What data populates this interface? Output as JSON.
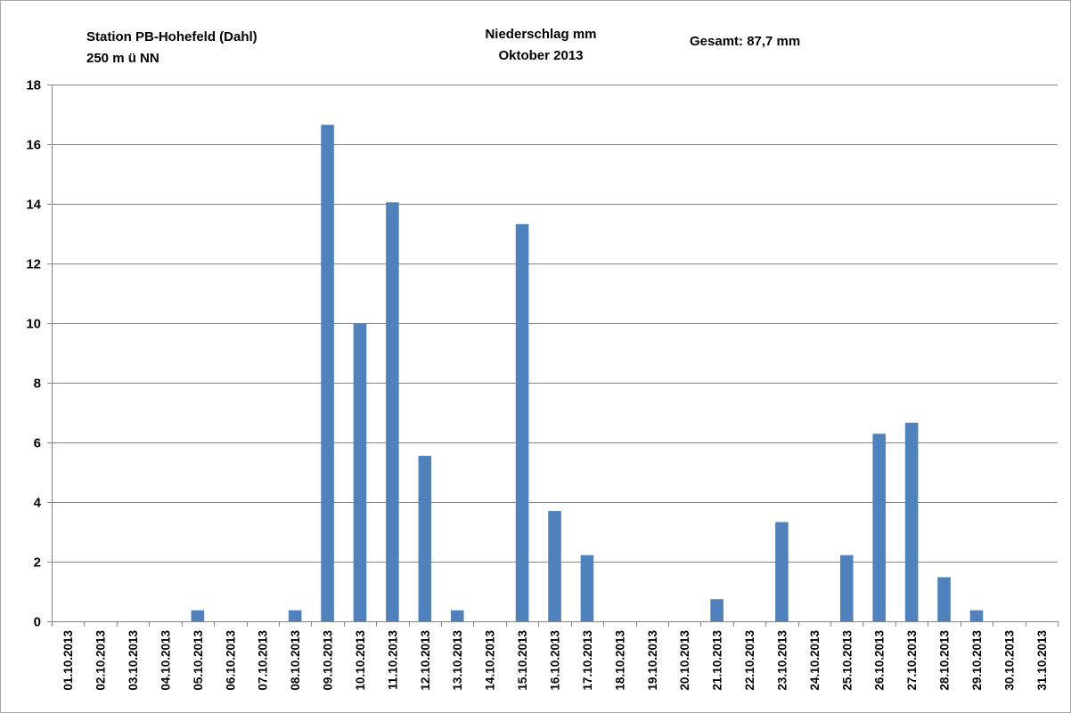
{
  "chart_data": {
    "type": "bar",
    "header": {
      "station_line1": "Station PB-Hohefeld (Dahl)",
      "station_line2": "250 m ü NN",
      "title_line1": "Niederschlag mm",
      "title_line2": "Oktober 2013",
      "total": "Gesamt:  87,7 mm"
    },
    "categories": [
      "01.10.2013",
      "02.10.2013",
      "03.10.2013",
      "04.10.2013",
      "05.10.2013",
      "06.10.2013",
      "07.10.2013",
      "08.10.2013",
      "09.10.2013",
      "10.10.2013",
      "11.10.2013",
      "12.10.2013",
      "13.10.2013",
      "14.10.2013",
      "15.10.2013",
      "16.10.2013",
      "17.10.2013",
      "18.10.2013",
      "19.10.2013",
      "20.10.2013",
      "21.10.2013",
      "22.10.2013",
      "23.10.2013",
      "24.10.2013",
      "25.10.2013",
      "26.10.2013",
      "27.10.2013",
      "28.10.2013",
      "29.10.2013",
      "30.10.2013",
      "31.10.2013"
    ],
    "values": [
      0,
      0,
      0,
      0,
      0.37,
      0,
      0,
      0.37,
      16.65,
      10.0,
      14.05,
      5.55,
      0.37,
      0,
      13.32,
      3.7,
      2.22,
      0,
      0,
      0,
      0.74,
      0,
      3.33,
      0,
      2.22,
      6.29,
      6.66,
      1.48,
      0.37,
      0,
      0
    ],
    "ylim": [
      0,
      18
    ],
    "yticks": [
      "0",
      "2",
      "4",
      "6",
      "8",
      "10",
      "12",
      "14",
      "16",
      "18"
    ],
    "ytick_values": [
      0,
      2,
      4,
      6,
      8,
      10,
      12,
      14,
      16,
      18
    ],
    "grid": true,
    "legend": "none",
    "bar_color": "#4f81bd",
    "gridline_color": "#868686"
  }
}
